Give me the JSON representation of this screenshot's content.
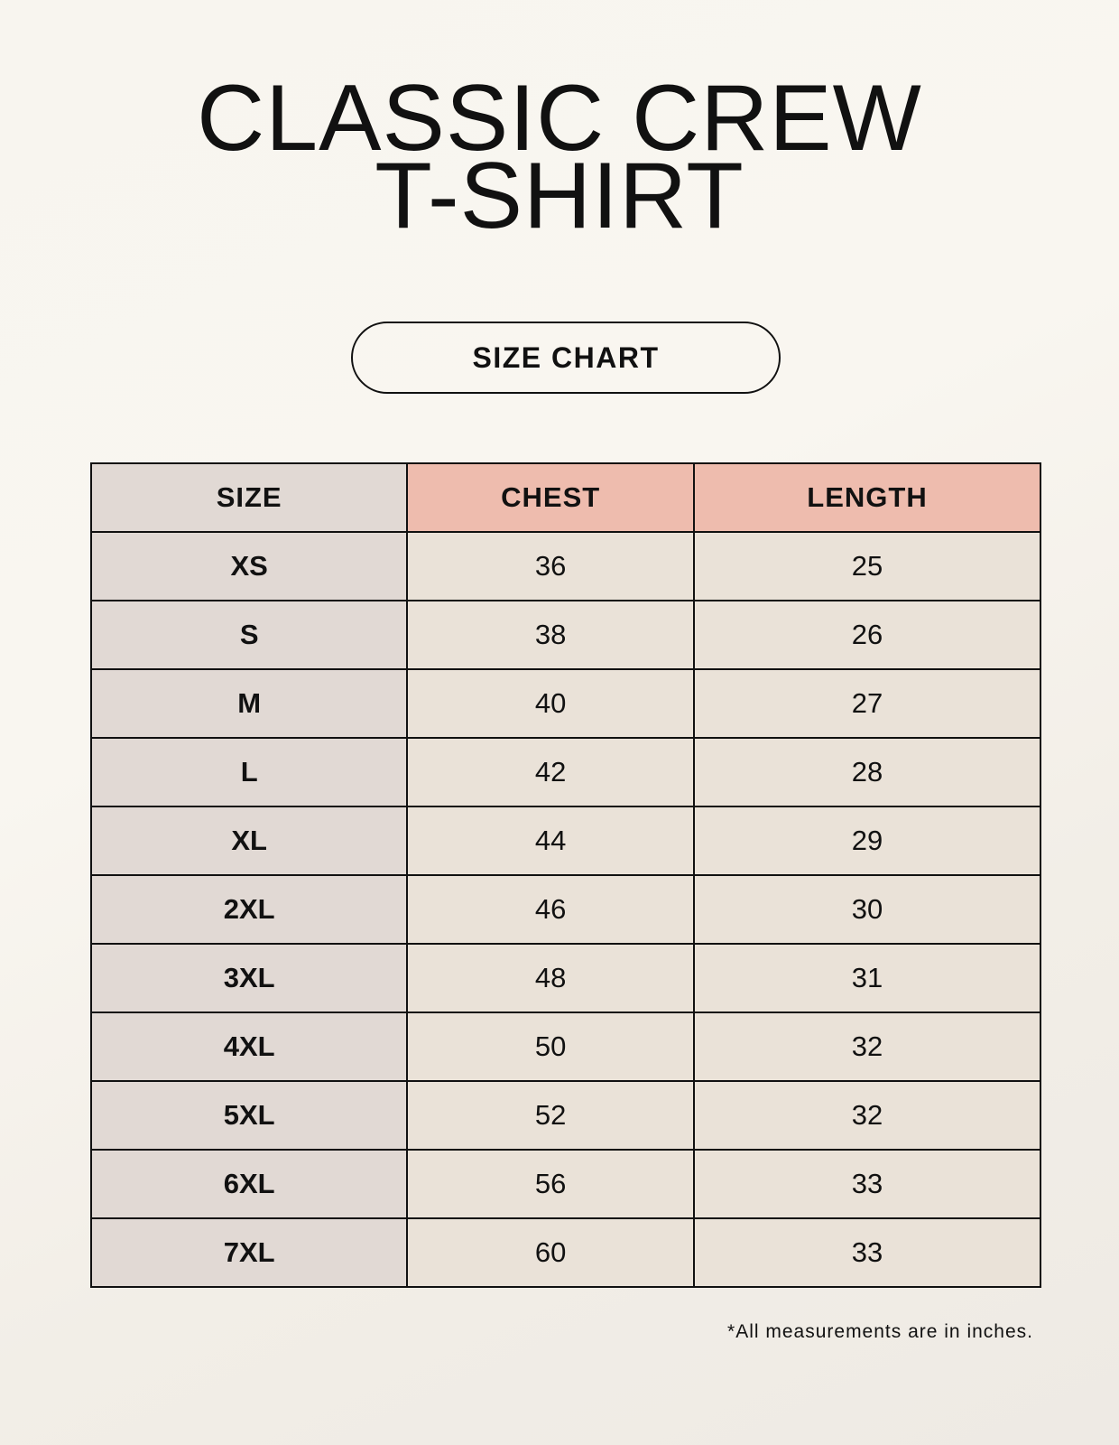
{
  "title": {
    "line1": "CLASSIC CREW",
    "line2": "T-SHIRT"
  },
  "badge": "SIZE CHART",
  "table": {
    "headers": [
      "SIZE",
      "CHEST",
      "LENGTH"
    ],
    "rows": [
      [
        "XS",
        "36",
        "25"
      ],
      [
        "S",
        "38",
        "26"
      ],
      [
        "M",
        "40",
        "27"
      ],
      [
        "L",
        "42",
        "28"
      ],
      [
        "XL",
        "44",
        "29"
      ],
      [
        "2XL",
        "46",
        "30"
      ],
      [
        "3XL",
        "48",
        "31"
      ],
      [
        "4XL",
        "50",
        "32"
      ],
      [
        "5XL",
        "52",
        "32"
      ],
      [
        "6XL",
        "56",
        "33"
      ],
      [
        "7XL",
        "60",
        "33"
      ]
    ]
  },
  "footnote": "*All measurements are in inches.",
  "colors": {
    "size_column": "#e1d9d4",
    "header_accent": "#eebcae",
    "value_cells": "#eae2d8"
  }
}
